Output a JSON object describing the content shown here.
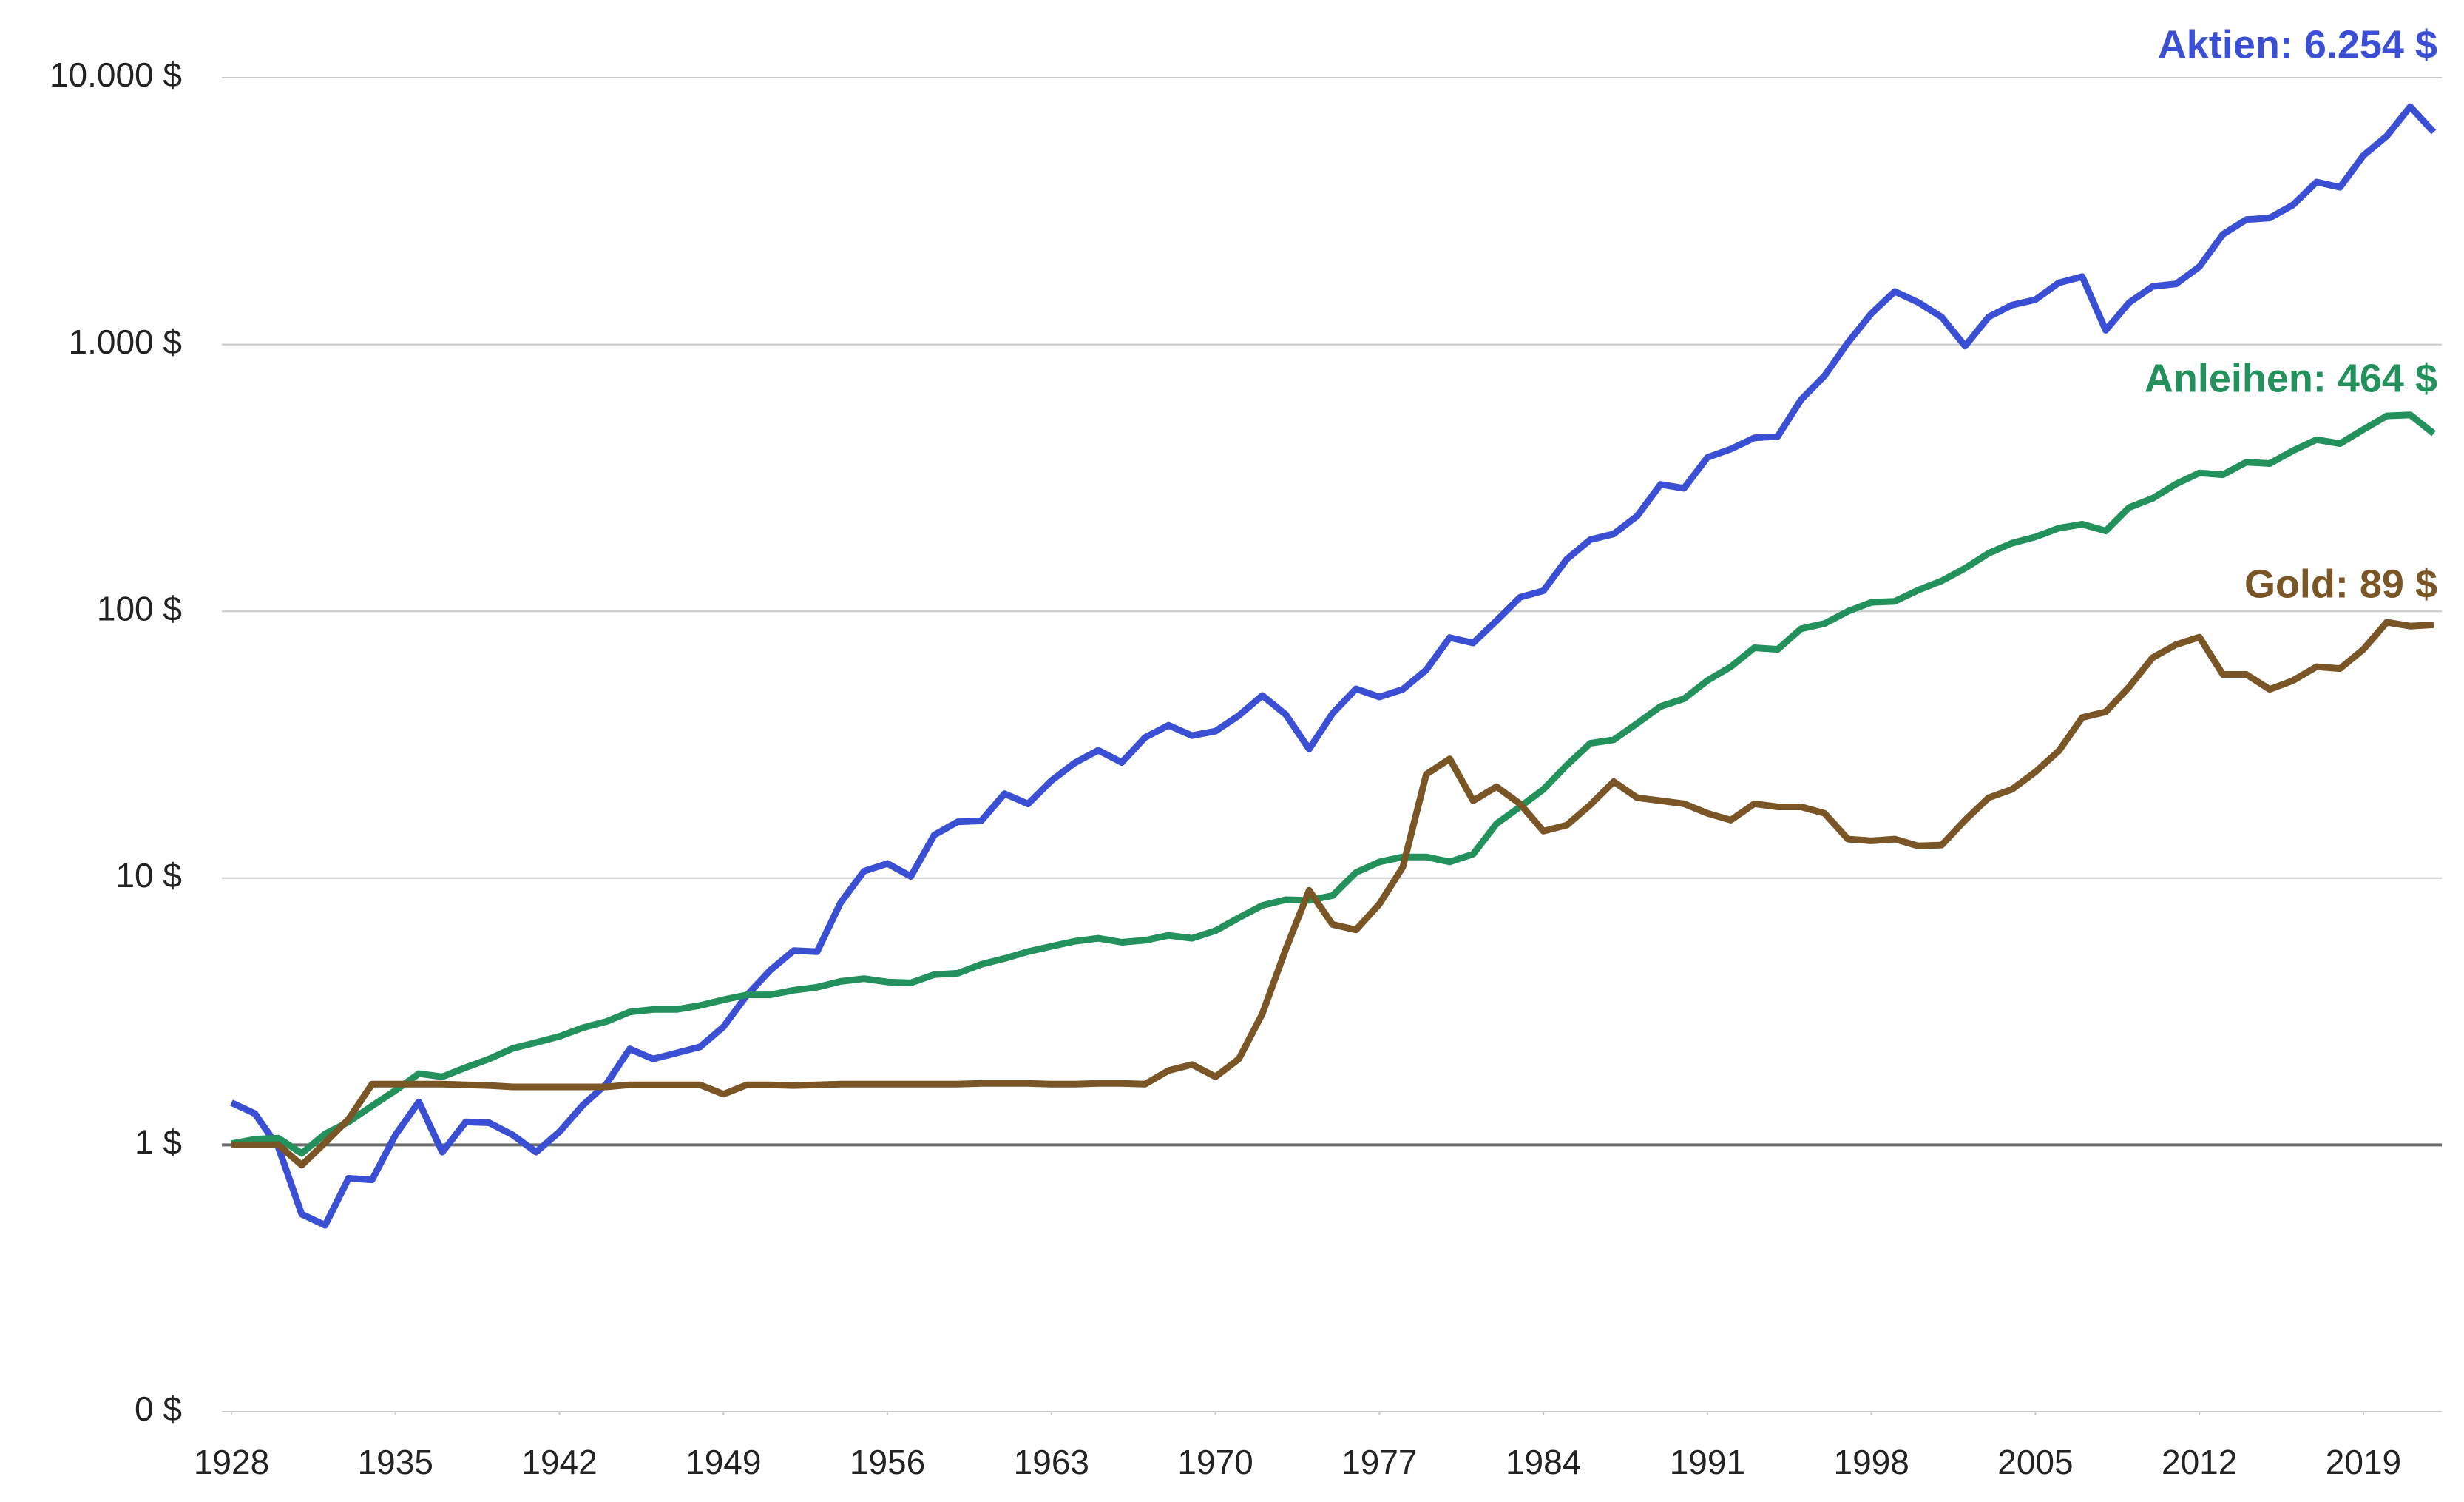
{
  "chart_data": {
    "type": "line",
    "log_scale": true,
    "grid": true,
    "reference_line": 1,
    "x": [
      1928,
      1929,
      1930,
      1931,
      1932,
      1933,
      1934,
      1935,
      1936,
      1937,
      1938,
      1939,
      1940,
      1941,
      1942,
      1943,
      1944,
      1945,
      1946,
      1947,
      1948,
      1949,
      1950,
      1951,
      1952,
      1953,
      1954,
      1955,
      1956,
      1957,
      1958,
      1959,
      1960,
      1961,
      1962,
      1963,
      1964,
      1965,
      1966,
      1967,
      1968,
      1969,
      1970,
      1971,
      1972,
      1973,
      1974,
      1975,
      1976,
      1977,
      1978,
      1979,
      1980,
      1981,
      1982,
      1983,
      1984,
      1985,
      1986,
      1987,
      1988,
      1989,
      1990,
      1991,
      1992,
      1993,
      1994,
      1995,
      1996,
      1997,
      1998,
      1999,
      2000,
      2001,
      2002,
      2003,
      2004,
      2005,
      2006,
      2007,
      2008,
      2009,
      2010,
      2011,
      2012,
      2013,
      2014,
      2015,
      2016,
      2017,
      2018,
      2019,
      2020,
      2021,
      2022
    ],
    "xlim": [
      1928,
      2022
    ],
    "xticks": [
      1928,
      1935,
      1942,
      1949,
      1956,
      1963,
      1970,
      1977,
      1984,
      1991,
      1998,
      2005,
      2012,
      2019
    ],
    "ylim": [
      0.1,
      10000
    ],
    "yticks": [
      {
        "value": 0.1,
        "label": "0 $"
      },
      {
        "value": 1,
        "label": "1 $"
      },
      {
        "value": 10,
        "label": "10 $"
      },
      {
        "value": 100,
        "label": "100 $"
      },
      {
        "value": 1000,
        "label": "1.000 $"
      },
      {
        "value": 10000,
        "label": "10.000 $"
      }
    ],
    "series": [
      {
        "name": "Aktien",
        "end_label": "Aktien: 6.254 $",
        "color": "#3a4fd4",
        "values": [
          1.44,
          1.31,
          0.98,
          0.55,
          0.5,
          0.75,
          0.74,
          1.09,
          1.45,
          0.94,
          1.22,
          1.21,
          1.09,
          0.94,
          1.12,
          1.41,
          1.69,
          2.29,
          2.1,
          2.21,
          2.33,
          2.77,
          3.64,
          4.52,
          5.35,
          5.3,
          8.09,
          10.62,
          11.34,
          10.15,
          14.51,
          16.26,
          16.39,
          20.72,
          18.97,
          23.18,
          27.04,
          30.14,
          27.13,
          33.68,
          37.41,
          34.21,
          35.55,
          40.66,
          48.36,
          41.07,
          30.46,
          41.42,
          51.2,
          47.75,
          50.99,
          60.31,
          79.7,
          76.1,
          92.28,
          112.86,
          119.39,
          156.88,
          185.51,
          195.06,
          227.54,
          298.98,
          289.23,
          377.29,
          405.63,
          446.68,
          452.03,
          621.55,
          763.16,
          1017.22,
          1307.3,
          1581.1,
          1438,
          1266.8,
          986.13,
          1268.2,
          1404.3,
          1472.1,
          1703.2,
          1796.2,
          1130.15,
          1434.7,
          1650.2,
          1687,
          1956,
          2586,
          2939,
          2980,
          3336,
          4063,
          3885,
          5108,
          6048,
          7785,
          6254
        ]
      },
      {
        "name": "Anleihen",
        "end_label": "Anleihen: 464 $",
        "color": "#22915c",
        "values": [
          1.01,
          1.05,
          1.06,
          0.93,
          1.1,
          1.22,
          1.4,
          1.6,
          1.85,
          1.8,
          1.95,
          2.1,
          2.3,
          2.42,
          2.55,
          2.75,
          2.9,
          3.15,
          3.22,
          3.22,
          3.33,
          3.5,
          3.65,
          3.65,
          3.8,
          3.9,
          4.1,
          4.2,
          4.08,
          4.05,
          4.35,
          4.4,
          4.75,
          5,
          5.3,
          5.55,
          5.8,
          5.95,
          5.75,
          5.85,
          6.1,
          5.95,
          6.35,
          7.1,
          7.9,
          8.3,
          8.25,
          8.6,
          10.5,
          11.5,
          12,
          12,
          11.5,
          12.3,
          16,
          18.5,
          21.5,
          26.5,
          32,
          33,
          38,
          44,
          47,
          55,
          62,
          73,
          72,
          86,
          90,
          100,
          108,
          109,
          120,
          130,
          145,
          165,
          180,
          190,
          205,
          212,
          200,
          245,
          265,
          300,
          330,
          325,
          362,
          358,
          400,
          440,
          425,
          480,
          540,
          545,
          464
        ]
      },
      {
        "name": "Gold",
        "end_label": "Gold: 89 $",
        "color": "#7a5526",
        "values": [
          1,
          1,
          1,
          0.84,
          1.02,
          1.25,
          1.69,
          1.69,
          1.69,
          1.69,
          1.68,
          1.67,
          1.65,
          1.65,
          1.65,
          1.65,
          1.65,
          1.68,
          1.68,
          1.68,
          1.68,
          1.55,
          1.68,
          1.68,
          1.67,
          1.68,
          1.69,
          1.69,
          1.69,
          1.69,
          1.69,
          1.69,
          1.7,
          1.7,
          1.7,
          1.69,
          1.69,
          1.7,
          1.7,
          1.69,
          1.9,
          2,
          1.8,
          2.1,
          3.1,
          5.4,
          9,
          6.7,
          6.4,
          8,
          11,
          24.5,
          28,
          19.5,
          22,
          19,
          15,
          15.8,
          18.8,
          23,
          20,
          19.5,
          19,
          17.5,
          16.5,
          19,
          18.5,
          18.5,
          17.5,
          14,
          13.8,
          14,
          13.2,
          13.3,
          16.5,
          20,
          21.5,
          25,
          30,
          40,
          42,
          52,
          67,
          75,
          80,
          58,
          58,
          51,
          55,
          62,
          61,
          72,
          91,
          88,
          89
        ]
      }
    ]
  }
}
